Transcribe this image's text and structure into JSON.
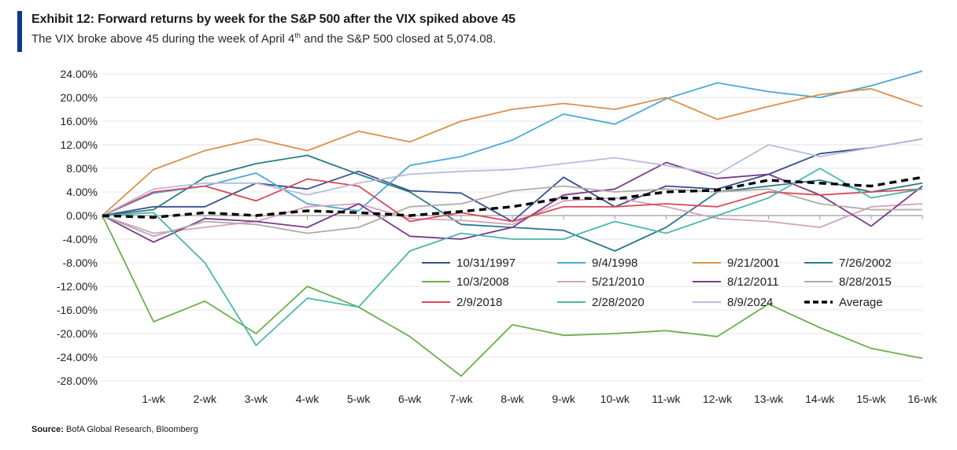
{
  "header": {
    "title": "Exhibit 12: Forward returns by week for the S&P 500 after the VIX spiked above 45",
    "subtitle_before": "The VIX broke above 45 during the week of April 4",
    "subtitle_sup": "th",
    "subtitle_after": " and the S&P 500 closed at 5,074.08."
  },
  "footer": {
    "source_label": "Source:",
    "source_text": " BofA Global Research, Bloomberg"
  },
  "chart_data": {
    "type": "line",
    "title": "Exhibit 12: Forward returns by week for the S&P 500 after the VIX spiked above 45",
    "x": [
      "",
      "1-wk",
      "2-wk",
      "3-wk",
      "4-wk",
      "5-wk",
      "6-wk",
      "7-wk",
      "8-wk",
      "9-wk",
      "10-wk",
      "11-wk",
      "12-wk",
      "13-wk",
      "14-wk",
      "15-wk",
      "16-wk"
    ],
    "ylim": [
      -28,
      24
    ],
    "yticks": [
      24,
      20,
      16,
      12,
      8,
      4,
      0,
      -4,
      -8,
      -12,
      -16,
      -20,
      -24,
      -28
    ],
    "ytick_labels": [
      "24.00%",
      "20.00%",
      "16.00%",
      "12.00%",
      "8.00%",
      "4.00%",
      "0.00%",
      "-4.00%",
      "-8.00%",
      "-12.00%",
      "-16.00%",
      "-20.00%",
      "-24.00%",
      "-28.00%"
    ],
    "grid": "horizontal",
    "legend_position": "lower-right",
    "series": [
      {
        "name": "10/31/1997",
        "color": "#3a4f8c",
        "dash": false,
        "values": [
          0,
          1.5,
          1.5,
          5.5,
          4.5,
          7.5,
          4.2,
          3.8,
          -1.0,
          6.5,
          1.5,
          5.0,
          4.5,
          7.0,
          10.5,
          11.5,
          13.0
        ]
      },
      {
        "name": "9/4/1998",
        "color": "#4aa8d8",
        "dash": false,
        "values": [
          0,
          3.8,
          5.0,
          7.2,
          2.0,
          0.8,
          8.5,
          10.0,
          12.8,
          17.2,
          15.5,
          19.8,
          22.5,
          21.0,
          20.0,
          22.0,
          24.5
        ]
      },
      {
        "name": "9/21/2001",
        "color": "#d9904a",
        "dash": false,
        "values": [
          0,
          7.8,
          11.0,
          13.0,
          11.0,
          14.3,
          12.5,
          16.0,
          18.0,
          19.0,
          18.0,
          20.0,
          16.3,
          18.5,
          20.5,
          21.5,
          18.5
        ]
      },
      {
        "name": "7/26/2002",
        "color": "#2a7a8a",
        "dash": false,
        "values": [
          0,
          1.0,
          6.5,
          8.8,
          10.2,
          7.0,
          4.0,
          -1.5,
          -2.0,
          -2.5,
          -6.0,
          -2.0,
          4.0,
          5.0,
          6.0,
          4.0,
          5.5
        ]
      },
      {
        "name": "10/3/2008",
        "color": "#6ab04c",
        "dash": false,
        "values": [
          0,
          -18.0,
          -14.5,
          -20.0,
          -12.0,
          -15.5,
          -20.5,
          -27.2,
          -18.5,
          -20.3,
          -20.0,
          -19.5,
          -20.5,
          -15.0,
          -19.0,
          -22.5,
          -24.2
        ]
      },
      {
        "name": "5/21/2010",
        "color": "#d4a3b8",
        "dash": false,
        "values": [
          0,
          -3.0,
          -2.0,
          -1.0,
          1.5,
          2.0,
          -0.5,
          -0.8,
          -1.5,
          2.5,
          3.0,
          1.5,
          -0.5,
          -1.0,
          -2.0,
          1.5,
          2.0
        ]
      },
      {
        "name": "8/12/2011",
        "color": "#7a3a8a",
        "dash": false,
        "values": [
          0,
          -4.5,
          -0.5,
          -1.0,
          -2.0,
          2.0,
          -3.5,
          -4.0,
          -2.0,
          3.5,
          4.5,
          9.0,
          6.3,
          7.0,
          3.5,
          -1.8,
          5.0
        ]
      },
      {
        "name": "8/28/2015",
        "color": "#b0aaa8",
        "dash": false,
        "values": [
          0,
          -3.5,
          -1.0,
          -1.5,
          -3.0,
          -2.0,
          1.5,
          2.0,
          4.2,
          5.0,
          4.0,
          4.5,
          4.0,
          4.5,
          2.0,
          1.0,
          1.0
        ]
      },
      {
        "name": "2/9/2018",
        "color": "#d84a5a",
        "dash": false,
        "values": [
          0,
          4.0,
          5.0,
          2.5,
          6.2,
          5.0,
          -1.0,
          0.5,
          -1.0,
          1.5,
          1.5,
          2.0,
          1.5,
          4.0,
          3.5,
          4.0,
          4.5
        ]
      },
      {
        "name": "2/28/2020",
        "color": "#4ab8a8",
        "dash": false,
        "values": [
          0,
          0.5,
          -8.0,
          -22.0,
          -14.0,
          -15.5,
          -6.0,
          -3.0,
          -4.0,
          -4.0,
          -1.0,
          -3.0,
          0.0,
          3.0,
          8.0,
          3.0,
          4.5
        ]
      },
      {
        "name": "8/9/2024",
        "color": "#b8bcdc",
        "dash": false,
        "values": [
          0,
          4.5,
          5.5,
          5.5,
          3.5,
          5.5,
          7.0,
          7.5,
          7.8,
          8.8,
          9.8,
          8.5,
          7.0,
          12.0,
          10.0,
          11.5,
          13.0
        ]
      },
      {
        "name": "Average",
        "color": "#000000",
        "dash": true,
        "values": [
          0,
          -0.3,
          0.5,
          0.0,
          0.8,
          0.5,
          0.0,
          0.7,
          1.5,
          3.0,
          2.8,
          4.0,
          4.3,
          6.0,
          5.5,
          5.0,
          6.5
        ]
      }
    ]
  }
}
